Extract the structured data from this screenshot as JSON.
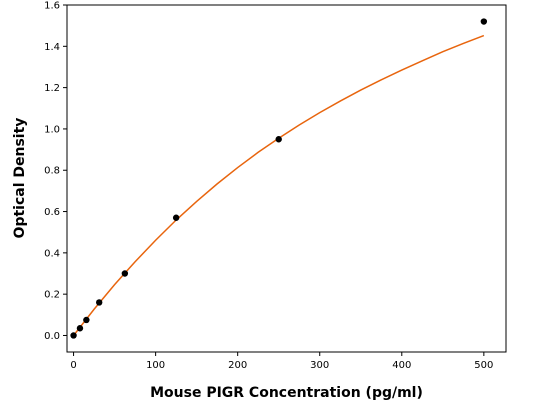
{
  "chart_data": {
    "type": "scatter",
    "title": "",
    "xlabel": "Mouse PIGR Concentration (pg/ml)",
    "ylabel": "Optical Density",
    "xlim": [
      -8,
      527
    ],
    "ylim": [
      -0.08,
      1.6
    ],
    "xticks": [
      0,
      100,
      200,
      300,
      400,
      500
    ],
    "yticks": [
      0.0,
      0.2,
      0.4,
      0.6,
      0.8,
      1.0,
      1.2,
      1.4,
      1.6
    ],
    "ytick_labels": [
      "0.0",
      "0.2",
      "0.4",
      "0.6",
      "0.8",
      "1.0",
      "1.2",
      "1.4",
      "1.6"
    ],
    "grid": false,
    "legend": "none",
    "series": [
      {
        "kind": "points",
        "color": "#000000",
        "x": [
          0,
          7.8,
          15.6,
          31.25,
          62.5,
          125,
          250,
          500
        ],
        "y": [
          0.0,
          0.035,
          0.075,
          0.16,
          0.3,
          0.57,
          0.95,
          1.52
        ]
      },
      {
        "kind": "fit-curve",
        "color": "#e8650e",
        "x": [
          0,
          25,
          50,
          75,
          100,
          125,
          150,
          175,
          200,
          225,
          250,
          275,
          300,
          325,
          350,
          375,
          400,
          425,
          450,
          475,
          500
        ],
        "y": [
          0.0,
          0.127,
          0.246,
          0.357,
          0.461,
          0.559,
          0.649,
          0.734,
          0.813,
          0.887,
          0.955,
          1.019,
          1.079,
          1.135,
          1.188,
          1.238,
          1.285,
          1.33,
          1.374,
          1.414,
          1.452
        ]
      }
    ]
  }
}
